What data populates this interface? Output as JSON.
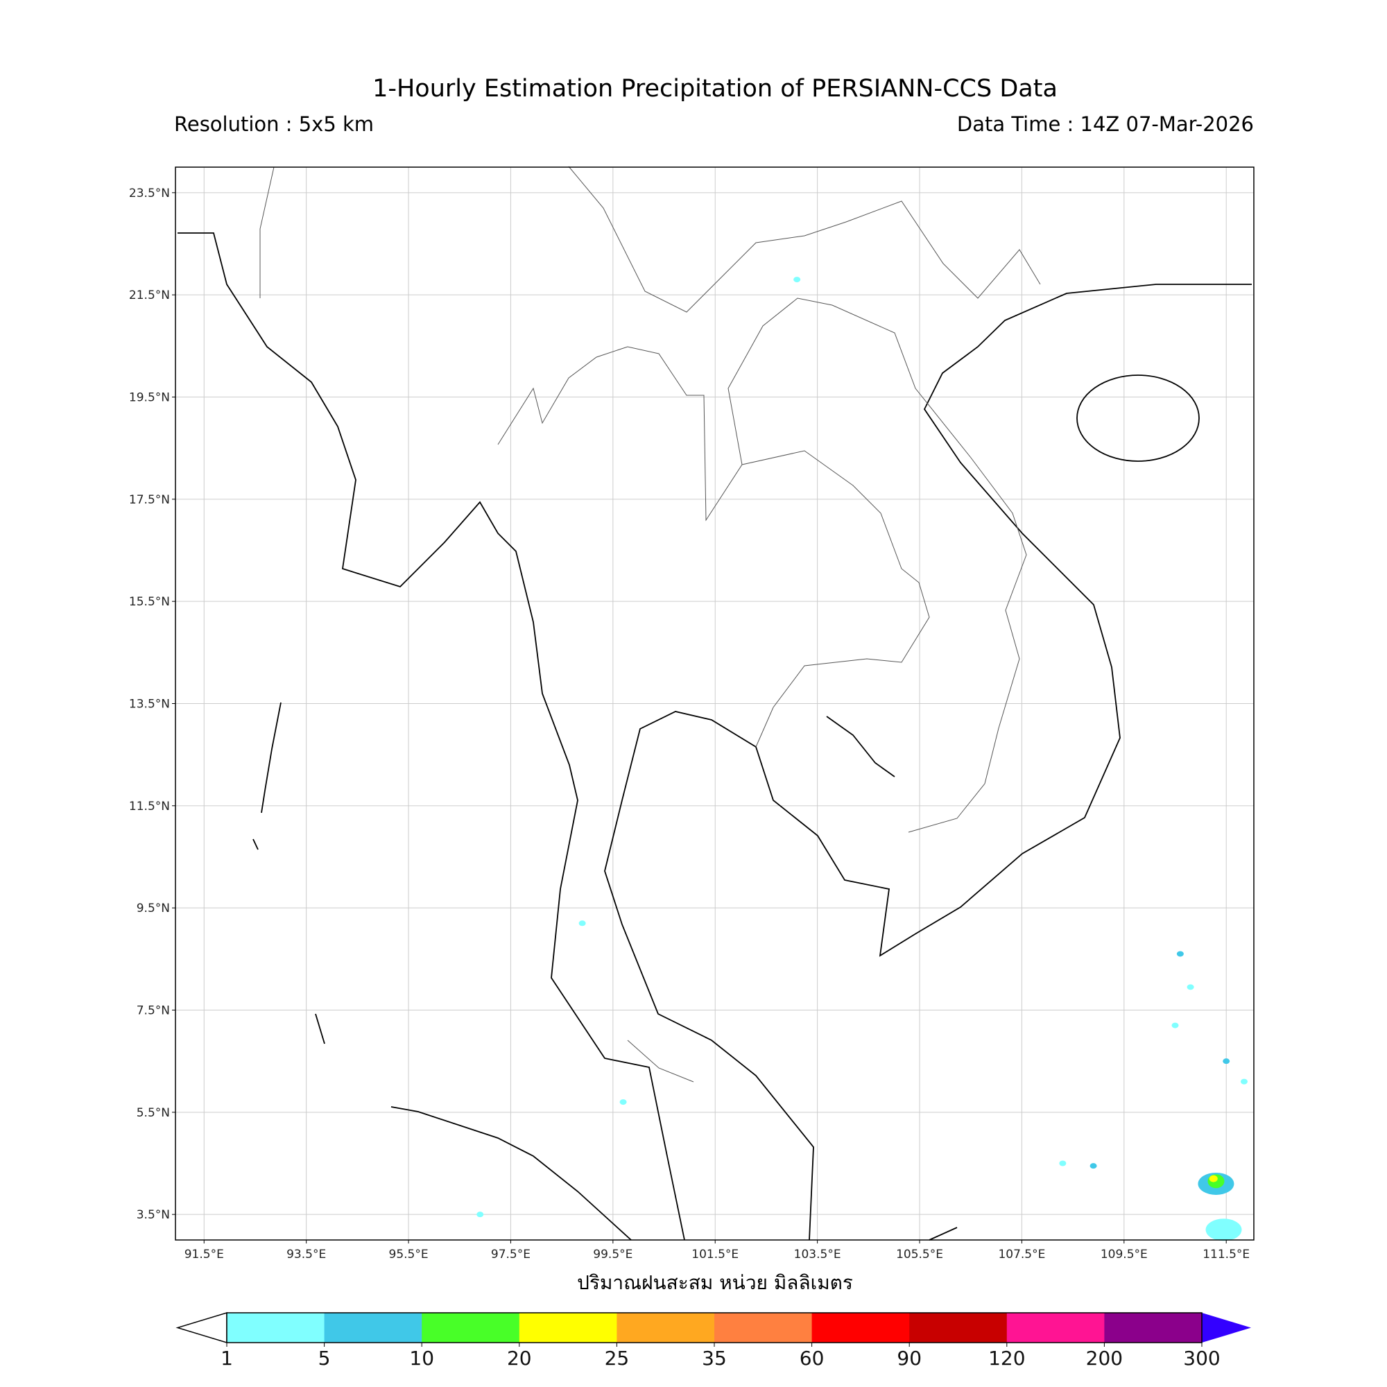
{
  "title": "1-Hourly Estimation Precipitation of PERSIANN-CCS Data",
  "resolution": "Resolution : 5x5 km",
  "data_time": "Data Time : 14Z 07-Mar-2026",
  "map": {
    "lon_range": [
      90.94,
      112.04
    ],
    "lat_range": [
      3.0,
      24.0
    ],
    "lat_ticks": [
      "23.5°N",
      "21.5°N",
      "19.5°N",
      "17.5°N",
      "15.5°N",
      "13.5°N",
      "11.5°N",
      "9.5°N",
      "7.5°N",
      "5.5°N",
      "3.5°N"
    ],
    "lat_values": [
      23.5,
      21.5,
      19.5,
      17.5,
      15.5,
      13.5,
      11.5,
      9.5,
      7.5,
      5.5,
      3.5
    ],
    "lon_ticks": [
      "91.5°E",
      "93.5°E",
      "95.5°E",
      "97.5°E",
      "99.5°E",
      "101.5°E",
      "103.5°E",
      "105.5°E",
      "107.5°E",
      "109.5°E",
      "111.5°E"
    ],
    "lon_values": [
      91.5,
      93.5,
      95.5,
      97.5,
      99.5,
      101.5,
      103.5,
      105.5,
      107.5,
      109.5,
      111.5
    ],
    "gridlines": true,
    "precip_cells": [
      {
        "lon": 103.1,
        "lat": 21.8,
        "mm": 2
      },
      {
        "lon": 98.9,
        "lat": 9.2,
        "mm": 2
      },
      {
        "lon": 99.7,
        "lat": 5.7,
        "mm": 2
      },
      {
        "lon": 96.9,
        "lat": 3.5,
        "mm": 2
      },
      {
        "lon": 110.6,
        "lat": 8.6,
        "mm": 6
      },
      {
        "lon": 110.8,
        "lat": 7.95,
        "mm": 2
      },
      {
        "lon": 110.5,
        "lat": 7.2,
        "mm": 3
      },
      {
        "lon": 111.5,
        "lat": 6.5,
        "mm": 6
      },
      {
        "lon": 111.85,
        "lat": 6.1,
        "mm": 2
      },
      {
        "lon": 108.3,
        "lat": 4.5,
        "mm": 2
      },
      {
        "lon": 108.9,
        "lat": 4.45,
        "mm": 6
      },
      {
        "lon": 111.3,
        "lat": 4.1,
        "mm": 6
      },
      {
        "lon": 111.45,
        "lat": 3.2,
        "mm": 2
      }
    ],
    "storm_core": [
      {
        "lon": 111.3,
        "lat": 4.15,
        "mm": 12
      },
      {
        "lon": 111.25,
        "lat": 4.2,
        "mm": 22
      }
    ]
  },
  "xlabel": "ปริมาณฝนสะสม หน่วย มิลลิเมตร",
  "colorbar": {
    "labels": [
      "1",
      "5",
      "10",
      "20",
      "25",
      "35",
      "60",
      "90",
      "120",
      "200",
      "300"
    ],
    "colors": [
      "#80ffff",
      "#40c8e8",
      "#48ff28",
      "#ffff00",
      "#ffa820",
      "#ff8040",
      "#ff0000",
      "#c80000",
      "#ff1493",
      "#8b008b"
    ],
    "under_color": "#ffffff",
    "over_color": "#3300ff"
  }
}
